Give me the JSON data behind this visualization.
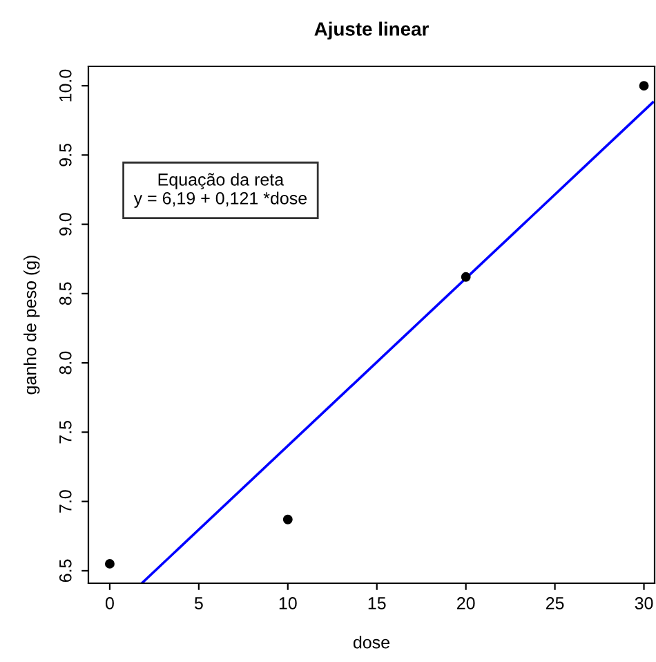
{
  "chart_data": {
    "type": "scatter",
    "title": "Ajuste linear",
    "xlabel": "dose",
    "ylabel": "ganho de peso (g)",
    "series": [
      {
        "color": "#000000",
        "x": [
          0,
          10,
          20,
          30
        ],
        "values": [
          6.55,
          6.87,
          8.62,
          10.0
        ],
        "marker": "circle"
      },
      {
        "type": "line",
        "color": "#0000ff",
        "x": [
          1.8,
          30.5
        ],
        "values": [
          6.41,
          9.88
        ],
        "marker": "none",
        "line_style": "solid"
      }
    ],
    "annotations": [
      "Equação da reta",
      "y = 6,19 + 0,121 *dose"
    ],
    "xlim": [
      -1.2,
      30.6
    ],
    "ylim": [
      6.41,
      10.14
    ],
    "xticks": [
      0,
      5,
      10,
      15,
      20,
      25,
      30
    ],
    "yticks": [
      {
        "value": 6.5,
        "label": "6.5"
      },
      {
        "value": 7.0,
        "label": "7.0"
      },
      {
        "value": 7.5,
        "label": "7.5"
      },
      {
        "value": 8.0,
        "label": "8.0"
      },
      {
        "value": 8.5,
        "label": "8.5"
      },
      {
        "value": 9.0,
        "label": "9.0"
      },
      {
        "value": 9.5,
        "label": "9.5"
      },
      {
        "value": 10.0,
        "label": "10.0"
      }
    ],
    "grid": false,
    "legend": false
  }
}
